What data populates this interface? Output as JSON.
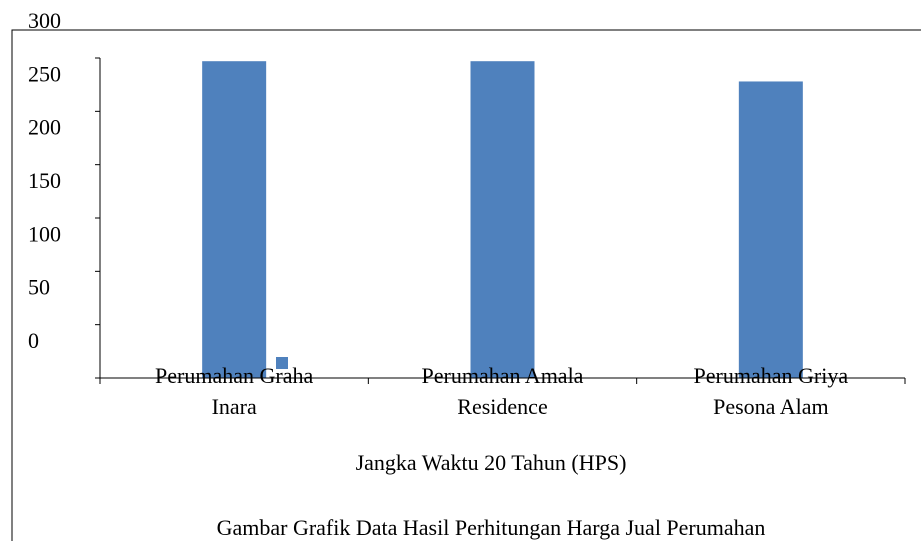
{
  "chart_data": {
    "type": "bar",
    "categories": [
      "Perumahan Graha Inara",
      "Perumahan Amala Residence",
      "Perumahan Griya Pesona Alam"
    ],
    "series": [
      {
        "name": "Gambar Grafik Data Hasil Perhitungan Harga Jual Perumahan",
        "color": "#4f81bd",
        "values": [
          297,
          297,
          278
        ]
      }
    ],
    "x_label": "Jangka Waktu 20 Tahun (HPS)",
    "ylim": [
      0,
      300
    ],
    "yticks": [
      0,
      50,
      100,
      150,
      200,
      250,
      300
    ]
  }
}
